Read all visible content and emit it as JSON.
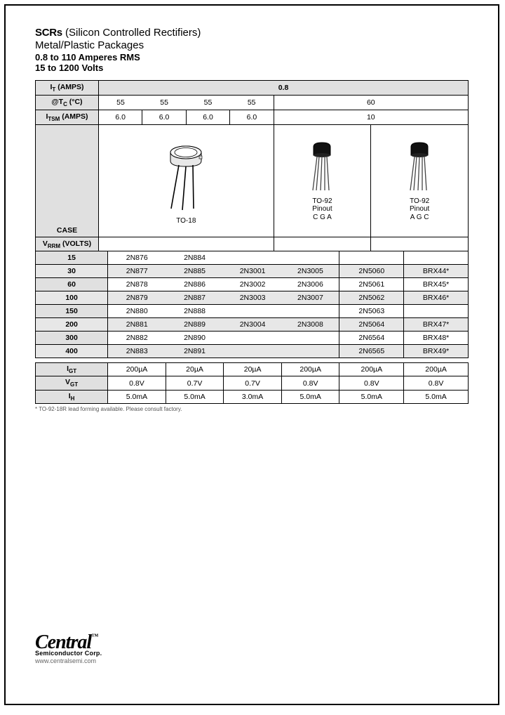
{
  "header": {
    "line1_bold": "SCRs",
    "line1_rest": " (Silicon Controlled Rectifiers)",
    "line2": "Metal/Plastic Packages",
    "line3": "0.8 to 110 Amperes RMS",
    "line4": "15 to 1200 Volts"
  },
  "tbl": {
    "it_label": "I<sub>T</sub> (AMPS)",
    "it_value": "0.8",
    "tc_label": "@T<sub>C</sub> (°C)",
    "tc_values": [
      "55",
      "55",
      "55",
      "55",
      "60"
    ],
    "itsm_label": "I<sub>TSM</sub> (AMPS)",
    "itsm_values": [
      "6.0",
      "6.0",
      "6.0",
      "6.0",
      "10"
    ],
    "case_label": "CASE",
    "case_to18": "TO-18",
    "case_to92a_l1": "TO-92",
    "case_to92a_l2": "Pinout",
    "case_to92a_l3": "C G A",
    "case_to92b_l1": "TO-92",
    "case_to92b_l2": "Pinout",
    "case_to92b_l3": "A G C",
    "vrrm_label": "V<sub>RRM</sub> (VOLTS)",
    "rows": [
      {
        "v": "15",
        "cells": [
          "2N876",
          "2N884",
          "",
          "",
          "",
          ""
        ],
        "alt": false
      },
      {
        "v": "30",
        "cells": [
          "2N877",
          "2N885",
          "2N3001",
          "2N3005",
          "2N5060",
          "BRX44*"
        ],
        "alt": true
      },
      {
        "v": "60",
        "cells": [
          "2N878",
          "2N886",
          "2N3002",
          "2N3006",
          "2N5061",
          "BRX45*"
        ],
        "alt": false
      },
      {
        "v": "100",
        "cells": [
          "2N879",
          "2N887",
          "2N3003",
          "2N3007",
          "2N5062",
          "BRX46*"
        ],
        "alt": true
      },
      {
        "v": "150",
        "cells": [
          "2N880",
          "2N888",
          "",
          "",
          "2N5063",
          ""
        ],
        "alt": false
      },
      {
        "v": "200",
        "cells": [
          "2N881",
          "2N889",
          "2N3004",
          "2N3008",
          "2N5064",
          "BRX47*"
        ],
        "alt": true
      },
      {
        "v": "300",
        "cells": [
          "2N882",
          "2N890",
          "",
          "",
          "2N6564",
          "BRX48*"
        ],
        "alt": false
      },
      {
        "v": "400",
        "cells": [
          "2N883",
          "2N891",
          "",
          "",
          "2N6565",
          "BRX49*"
        ],
        "alt": true
      }
    ]
  },
  "bottom": {
    "rows": [
      {
        "lbl": "I<sub>GT</sub>",
        "cells": [
          "200µA",
          "20µA",
          "20µA",
          "200µA",
          "200µA",
          "200µA"
        ]
      },
      {
        "lbl": "V<sub>GT</sub>",
        "cells": [
          "0.8V",
          "0.7V",
          "0.7V",
          "0.8V",
          "0.8V",
          "0.8V"
        ]
      },
      {
        "lbl": "I<sub>H</sub>",
        "cells": [
          "5.0mA",
          "5.0mA",
          "3.0mA",
          "5.0mA",
          "5.0mA",
          "5.0mA"
        ]
      }
    ]
  },
  "footnote": "* TO-92-18R lead forming available. Please consult factory.",
  "logo": {
    "name": "Central",
    "sub": "Semiconductor Corp.",
    "url": "www.centralsemi.com"
  },
  "colors": {
    "header_bg": "#e0e0e0",
    "alt_bg": "#e7e7e7",
    "border": "#000000"
  }
}
